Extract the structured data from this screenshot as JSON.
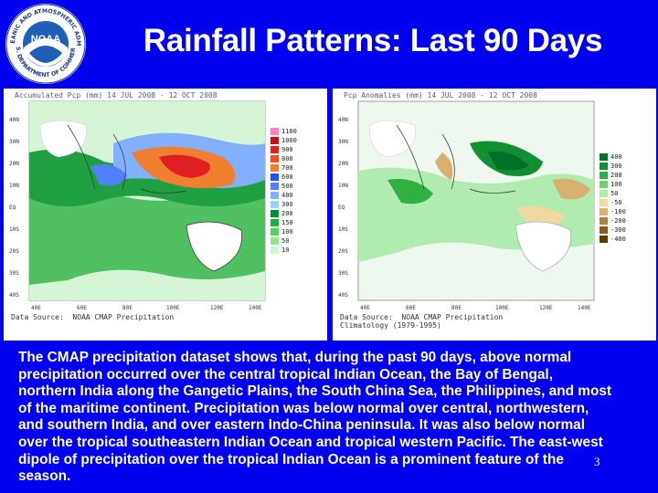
{
  "slide": {
    "title": "Rainfall Patterns: Last 90 Days",
    "body": "The CMAP precipitation dataset shows that, during the past 90 days, above normal precipitation occurred over the central tropical Indian Ocean, the Bay of Bengal, northern India along the Gangetic Plains, the South China Sea, the Philippines, and most of the maritime continent. Precipitation was below normal over central, northwestern, and southern India, and over eastern Indo-China peninsula. It was also below normal over the tropical southeastern Indian Ocean and tropical western Pacific. The east-west dipole of precipitation over the tropical Indian Ocean is a prominent feature of the season.",
    "page_number": "3",
    "background_color": "#0000ee"
  },
  "logo": {
    "name": "NOAA",
    "ring_text_top": "NATIONAL OCEANIC AND ATMOSPHERIC ADMINISTRATION",
    "ring_text_bottom": "U.S. DEPARTMENT OF COMMERCE"
  },
  "maps": {
    "left": {
      "caption": "Accumulated Pcp (mm)  14 JUL 2008 - 12 OCT 2008",
      "source": "Data Source:  NOAA CMAP Precipitation",
      "legend": [
        "1100",
        "1000",
        "900",
        "800",
        "700",
        "600",
        "500",
        "400",
        "300",
        "200",
        "150",
        "100",
        "50",
        "10"
      ],
      "y_ticks": [
        "40N",
        "30N",
        "20N",
        "10N",
        "EQ",
        "10S",
        "20S",
        "30S",
        "40S"
      ],
      "x_ticks": [
        "40E",
        "60E",
        "80E",
        "100E",
        "120E",
        "140E"
      ]
    },
    "right": {
      "caption": "Pcp Anomalies (mm)  14 JUL 2008 - 12 OCT 2008",
      "source": "Data Source:  NOAA CMAP Precipitation\nClimatology (1979-1995)",
      "legend": [
        "400",
        "300",
        "200",
        "100",
        "50",
        "-50",
        "-100",
        "-200",
        "-300",
        "-400"
      ],
      "y_ticks": [
        "40N",
        "30N",
        "20N",
        "10N",
        "EQ",
        "10S",
        "20S",
        "30S",
        "40S"
      ],
      "x_ticks": [
        "40E",
        "60E",
        "80E",
        "100E",
        "120E",
        "140E"
      ]
    }
  },
  "colors": {
    "left_legend": [
      "#ff80c0",
      "#c01010",
      "#e02020",
      "#f05020",
      "#f08030",
      "#2050ff",
      "#5080ff",
      "#80b0ff",
      "#a0d0ff",
      "#009030",
      "#20b040",
      "#50d060",
      "#90e890",
      "#d0f8d0"
    ],
    "right_legend": [
      "#00702a",
      "#109030",
      "#30b040",
      "#70d070",
      "#b0ecb0",
      "#f0d8a0",
      "#d8b070",
      "#b08040",
      "#8a5a20",
      "#603800"
    ]
  }
}
